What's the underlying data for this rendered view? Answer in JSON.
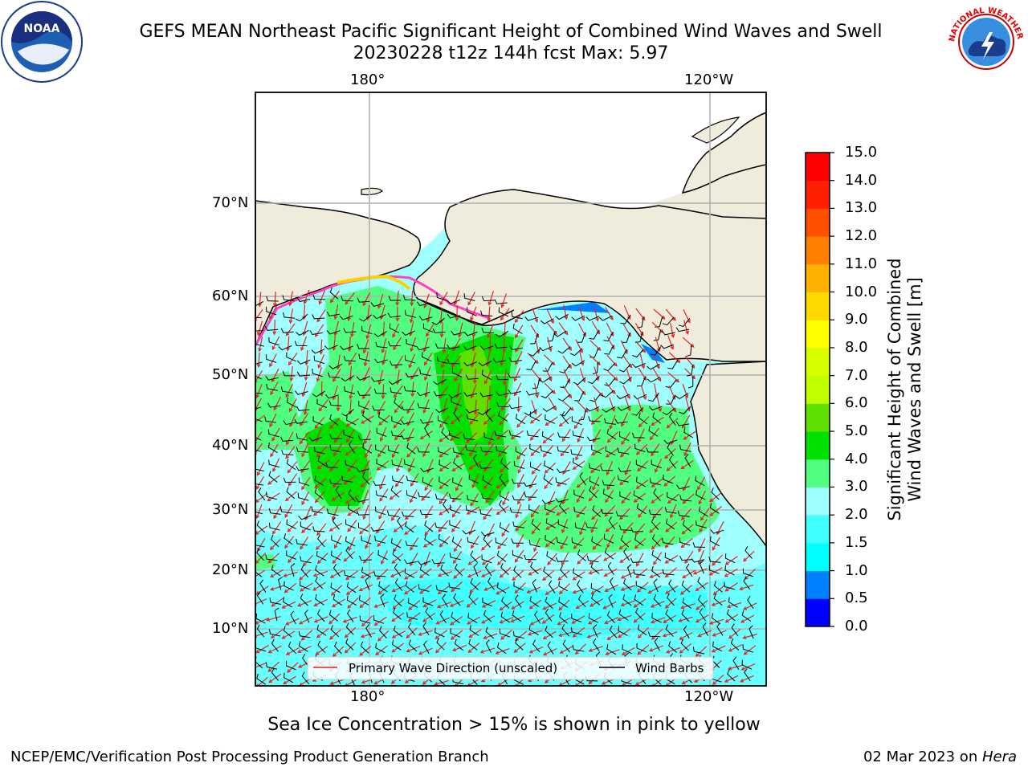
{
  "header": {
    "title_line1": "GEFS MEAN Northeast Pacific Significant Height of Combined Wind Waves and Swell",
    "title_line2": "20230228 t12z 144h fcst   Max: 5.97"
  },
  "logos": {
    "left": "noaa-logo",
    "left_text": "NOAA",
    "right": "nws-logo",
    "right_text": "NATIONAL WEATHER SERVICE"
  },
  "map": {
    "top_lon_labels": [
      "180°",
      "120°W"
    ],
    "bottom_lon_labels": [
      "180°",
      "120°W"
    ],
    "lat_labels": [
      "70°N",
      "60°N",
      "50°N",
      "40°N",
      "30°N",
      "20°N",
      "10°N"
    ],
    "legend": {
      "wave": "Primary Wave Direction (unscaled)",
      "wind": "Wind Barbs",
      "wave_color": "#e8221e",
      "wind_color": "#000000"
    },
    "land_color": "#efecdc",
    "grid_color": "#b0b0b0"
  },
  "colorbar": {
    "label_line1": "Significant Height of Combined",
    "label_line2": "Wind Waves and Swell [m]",
    "ticks": [
      "0.0",
      "0.5",
      "1.0",
      "1.5",
      "2.0",
      "3.0",
      "4.0",
      "5.0",
      "6.0",
      "7.0",
      "8.0",
      "9.0",
      "10.0",
      "11.0",
      "12.0",
      "13.0",
      "14.0",
      "15.0"
    ],
    "colors": [
      "#0000ff",
      "#0080ff",
      "#00ffff",
      "#40ffff",
      "#a0ffff",
      "#50ff80",
      "#00e000",
      "#60e000",
      "#c0ff00",
      "#d8ff00",
      "#ffff00",
      "#ffd800",
      "#ffb000",
      "#ff8000",
      "#ff5000",
      "#ff2000",
      "#ff0000"
    ]
  },
  "caption": "Sea Ice Concentration > 15% is shown in pink to yellow",
  "footer": {
    "left": "NCEP/EMC/Verification Post Processing Product Generation Branch",
    "right_date": "02 Mar 2023 on ",
    "right_host": "Hera"
  }
}
